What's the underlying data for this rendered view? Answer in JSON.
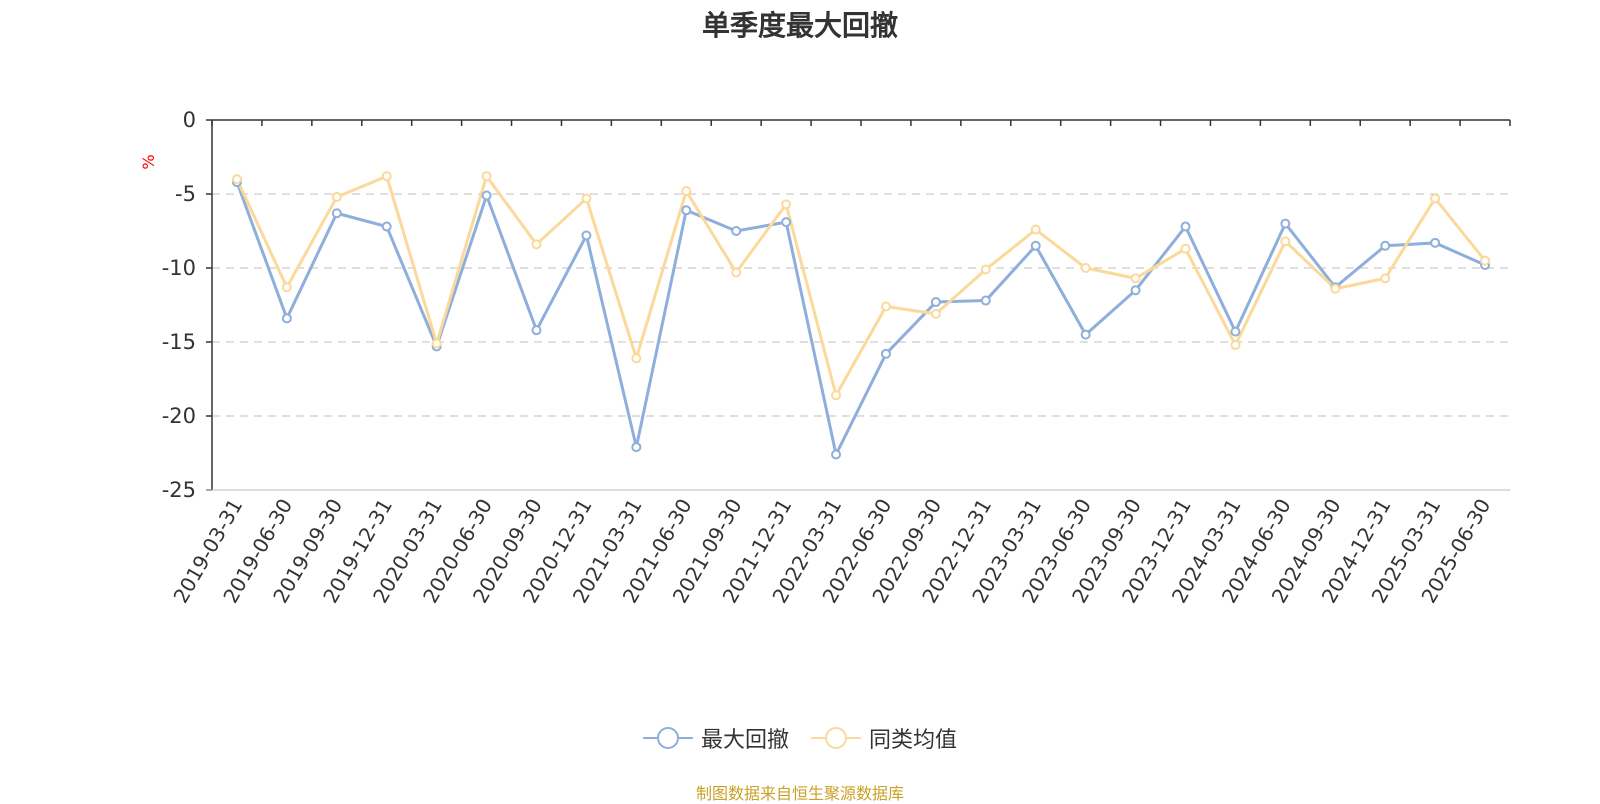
{
  "chart_data": {
    "type": "line",
    "title": "单季度最大回撤",
    "ylabel": "%",
    "ylim": [
      -25,
      0
    ],
    "yticks": [
      0,
      -5,
      -10,
      -15,
      -20,
      -25
    ],
    "grid": true,
    "legend_position": "bottom",
    "categories": [
      "2019-03-31",
      "2019-06-30",
      "2019-09-30",
      "2019-12-31",
      "2020-03-31",
      "2020-06-30",
      "2020-09-30",
      "2020-12-31",
      "2021-03-31",
      "2021-06-30",
      "2021-09-30",
      "2021-12-31",
      "2022-03-31",
      "2022-06-30",
      "2022-09-30",
      "2022-12-31",
      "2023-03-31",
      "2023-06-30",
      "2023-09-30",
      "2023-12-31",
      "2024-03-31",
      "2024-06-30",
      "2024-09-30",
      "2024-12-31",
      "2025-03-31",
      "2025-06-30"
    ],
    "series": [
      {
        "name": "最大回撤",
        "color": "#8eaedb",
        "values": [
          -4.2,
          -13.4,
          -6.3,
          -7.2,
          -15.3,
          -5.1,
          -14.2,
          -7.8,
          -22.1,
          -6.1,
          -7.5,
          -6.9,
          -22.6,
          -15.8,
          -12.3,
          -12.2,
          -8.5,
          -14.5,
          -11.5,
          -7.2,
          -14.3,
          -7.0,
          -11.3,
          -8.5,
          -8.3,
          -9.8
        ]
      },
      {
        "name": "同类均值",
        "color": "#fbd99a",
        "values": [
          -4.0,
          -11.3,
          -5.2,
          -3.8,
          -15.1,
          -3.8,
          -8.4,
          -5.3,
          -16.1,
          -4.8,
          -10.3,
          -5.7,
          -18.6,
          -12.6,
          -13.1,
          -10.1,
          -7.4,
          -10.0,
          -10.7,
          -8.7,
          -15.2,
          -8.2,
          -11.4,
          -10.7,
          -5.3,
          -9.5
        ]
      }
    ]
  },
  "footer": {
    "source": "制图数据来自恒生聚源数据库"
  }
}
